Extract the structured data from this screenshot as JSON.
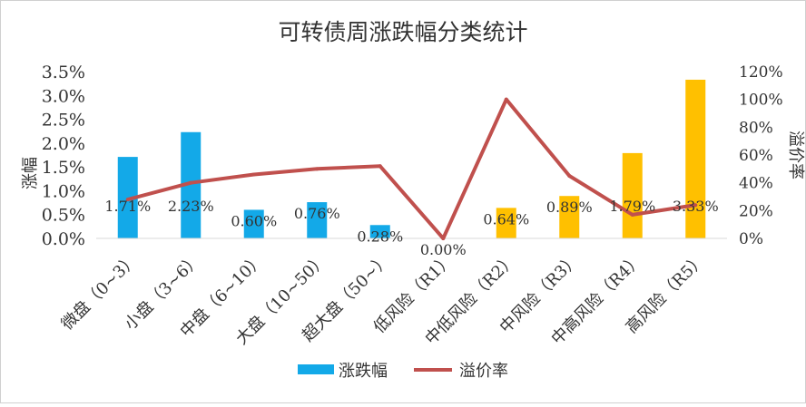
{
  "chart_data": {
    "type": "bar+line",
    "title": "可转债周涨跌幅分类统计",
    "ylabel_left": "涨幅",
    "ylabel_right": "溢价率",
    "categories": [
      "微盘（0~3）",
      "小盘（3~6）",
      "中盘（6~10）",
      "大盘（10~50）",
      "超大盘（50~）",
      "低风险（R1）",
      "中低风险（R2）",
      "中风险（R3）",
      "中高风险（R4）",
      "高风险（R5）"
    ],
    "series": [
      {
        "name": "涨跌幅",
        "type": "bar",
        "axis": "left",
        "values": [
          1.71,
          2.23,
          0.6,
          0.76,
          0.28,
          0.0,
          0.64,
          0.89,
          1.79,
          3.33
        ],
        "data_labels": [
          "1.71%",
          "2.23%",
          "0.60%",
          "0.76%",
          "0.28%",
          "0.00%",
          "0.64%",
          "0.89%",
          "1.79%",
          "3.33%"
        ],
        "colors": [
          "#13a9e8",
          "#13a9e8",
          "#13a9e8",
          "#13a9e8",
          "#13a9e8",
          "#ffc000",
          "#ffc000",
          "#ffc000",
          "#ffc000",
          "#ffc000"
        ]
      },
      {
        "name": "溢价率",
        "type": "line",
        "axis": "right",
        "color": "#c0504d",
        "values": [
          28,
          40,
          46,
          50,
          52,
          0,
          100,
          45,
          17,
          24
        ]
      }
    ],
    "yleft": {
      "min": 0,
      "max": 3.5,
      "ticks": [
        "0.0%",
        "0.5%",
        "1.0%",
        "1.5%",
        "2.0%",
        "2.5%",
        "3.0%",
        "3.5%"
      ]
    },
    "yright": {
      "min": 0,
      "max": 120,
      "ticks": [
        "0%",
        "20%",
        "40%",
        "60%",
        "80%",
        "100%",
        "120%"
      ]
    },
    "grid": false,
    "legend": "bottom",
    "legend_color_bar": "#13a9e8"
  }
}
